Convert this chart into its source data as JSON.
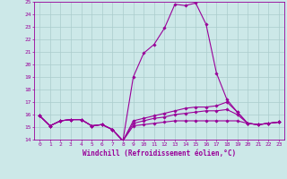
{
  "xlabel": "Windchill (Refroidissement éolien,°C)",
  "x": [
    0,
    1,
    2,
    3,
    4,
    5,
    6,
    7,
    8,
    9,
    10,
    11,
    12,
    13,
    14,
    15,
    16,
    17,
    18,
    19,
    20,
    21,
    22,
    23
  ],
  "line1": [
    15.9,
    15.1,
    15.5,
    15.6,
    15.6,
    15.1,
    15.2,
    14.8,
    13.9,
    19.0,
    20.9,
    21.6,
    22.9,
    24.8,
    24.7,
    24.9,
    23.2,
    19.3,
    17.2,
    16.2,
    15.3,
    15.2,
    15.3,
    15.4
  ],
  "line2": [
    15.9,
    15.1,
    15.5,
    15.6,
    15.6,
    15.1,
    15.2,
    14.8,
    13.9,
    15.5,
    15.7,
    15.9,
    16.1,
    16.3,
    16.5,
    16.6,
    16.6,
    16.7,
    17.0,
    16.2,
    15.3,
    15.2,
    15.3,
    15.4
  ],
  "line3": [
    15.9,
    15.1,
    15.5,
    15.6,
    15.6,
    15.1,
    15.2,
    14.8,
    13.9,
    15.3,
    15.5,
    15.7,
    15.8,
    16.0,
    16.1,
    16.2,
    16.3,
    16.3,
    16.4,
    16.0,
    15.3,
    15.2,
    15.3,
    15.4
  ],
  "line4": [
    15.9,
    15.1,
    15.5,
    15.6,
    15.6,
    15.1,
    15.2,
    14.8,
    13.9,
    15.1,
    15.2,
    15.3,
    15.4,
    15.5,
    15.5,
    15.5,
    15.5,
    15.5,
    15.5,
    15.5,
    15.3,
    15.2,
    15.3,
    15.4
  ],
  "line_color": "#990099",
  "bg_color": "#cce8e8",
  "grid_color": "#aacccc",
  "ylim": [
    14,
    25
  ],
  "yticks": [
    14,
    15,
    16,
    17,
    18,
    19,
    20,
    21,
    22,
    23,
    24,
    25
  ],
  "xticks": [
    0,
    1,
    2,
    3,
    4,
    5,
    6,
    7,
    8,
    9,
    10,
    11,
    12,
    13,
    14,
    15,
    16,
    17,
    18,
    19,
    20,
    21,
    22,
    23
  ],
  "marker": "D",
  "markersize": 1.8,
  "linewidth": 0.8,
  "tick_fontsize": 4.5,
  "xlabel_fontsize": 5.5
}
